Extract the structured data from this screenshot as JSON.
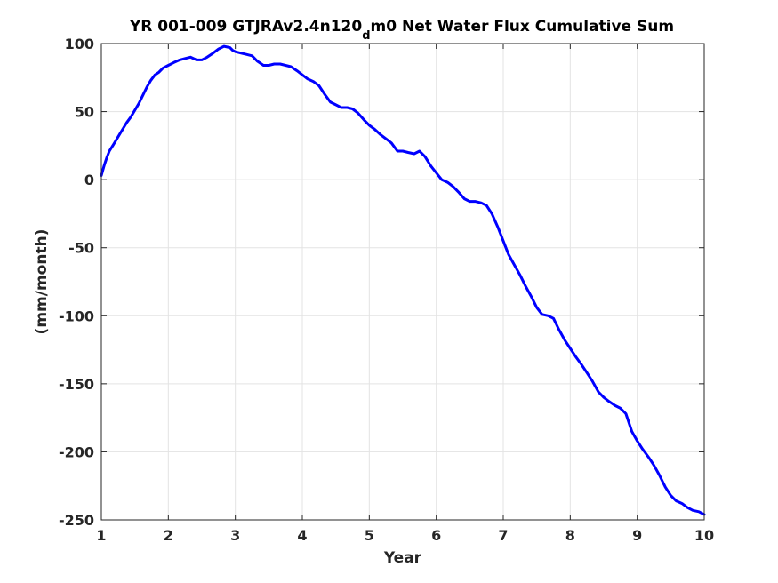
{
  "chart_data": {
    "type": "line",
    "title_main": "YR 001-009 GTJRAv2.4n120",
    "title_sub": "d",
    "title_tail": "m0 Net Water Flux Cumulative Sum",
    "xlabel": "Year",
    "ylabel": "(mm/month)",
    "xlim": [
      1,
      10
    ],
    "ylim": [
      -250,
      100
    ],
    "xticks": [
      1,
      2,
      3,
      4,
      5,
      6,
      7,
      8,
      9,
      10
    ],
    "yticks": [
      100,
      50,
      0,
      -50,
      -100,
      -150,
      -200,
      -250
    ],
    "grid": true,
    "line_color": "#0000ff",
    "series": [
      {
        "x": [
          1.0,
          1.04,
          1.08,
          1.12,
          1.17,
          1.22,
          1.28,
          1.33,
          1.38,
          1.44,
          1.5,
          1.56,
          1.62,
          1.68,
          1.74,
          1.8,
          1.86,
          1.92,
          2.0,
          2.08,
          2.17,
          2.25,
          2.33,
          2.42,
          2.5,
          2.58,
          2.67,
          2.75,
          2.83,
          2.92,
          2.96,
          3.0,
          3.08,
          3.17,
          3.25,
          3.33,
          3.42,
          3.5,
          3.58,
          3.67,
          3.75,
          3.83,
          3.92,
          4.0,
          4.08,
          4.17,
          4.25,
          4.33,
          4.42,
          4.5,
          4.58,
          4.67,
          4.75,
          4.83,
          4.92,
          5.0,
          5.08,
          5.17,
          5.25,
          5.33,
          5.42,
          5.5,
          5.58,
          5.67,
          5.75,
          5.83,
          5.92,
          6.0,
          6.08,
          6.17,
          6.25,
          6.33,
          6.42,
          6.5,
          6.58,
          6.67,
          6.75,
          6.83,
          6.92,
          7.0,
          7.08,
          7.17,
          7.25,
          7.33,
          7.42,
          7.5,
          7.58,
          7.67,
          7.75,
          7.83,
          7.92,
          8.0,
          8.08,
          8.17,
          8.25,
          8.33,
          8.42,
          8.5,
          8.58,
          8.67,
          8.75,
          8.83,
          8.92,
          9.0,
          9.08,
          9.17,
          9.25,
          9.33,
          9.42,
          9.5,
          9.58,
          9.67,
          9.75,
          9.83,
          9.92,
          10.0
        ],
        "y": [
          3,
          10,
          16,
          21,
          25,
          29,
          34,
          38,
          42,
          46,
          51,
          56,
          62,
          68,
          73,
          77,
          79,
          82,
          84,
          86,
          88,
          89,
          90,
          88,
          88,
          90,
          93,
          96,
          98,
          97,
          95,
          94,
          93,
          92,
          91,
          87,
          84,
          84,
          85,
          85,
          84,
          83,
          80,
          77,
          74,
          72,
          69,
          63,
          57,
          55,
          53,
          53,
          52,
          49,
          44,
          40,
          37,
          33,
          30,
          27,
          21,
          21,
          20,
          19,
          21,
          17,
          10,
          5,
          0,
          -2,
          -5,
          -9,
          -14,
          -16,
          -16,
          -17,
          -19,
          -25,
          -35,
          -45,
          -55,
          -63,
          -70,
          -78,
          -86,
          -94,
          -99,
          -100,
          -102,
          -110,
          -118,
          -124,
          -130,
          -136,
          -142,
          -148,
          -156,
          -160,
          -163,
          -166,
          -168,
          -172,
          -185,
          -192,
          -198,
          -204,
          -210,
          -217,
          -226,
          -232,
          -236,
          -238,
          -241,
          -243,
          -244,
          -246
        ]
      }
    ]
  }
}
